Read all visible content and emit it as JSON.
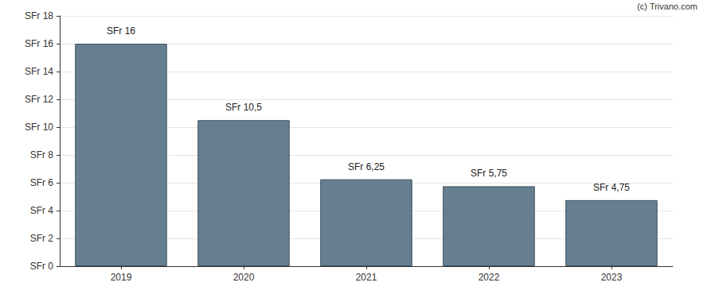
{
  "chart_data": {
    "type": "bar",
    "categories": [
      "2019",
      "2020",
      "2021",
      "2022",
      "2023"
    ],
    "values": [
      16,
      10.5,
      6.25,
      5.75,
      4.75
    ],
    "value_labels": [
      "SFr 16",
      "SFr 10,5",
      "SFr 6,25",
      "SFr 5,75",
      "SFr 4,75"
    ],
    "color": "#657f91",
    "ylim": [
      0,
      18
    ],
    "yticks": [
      {
        "value": 0,
        "label": "SFr 0"
      },
      {
        "value": 2,
        "label": "SFr 2"
      },
      {
        "value": 4,
        "label": "SFr 4"
      },
      {
        "value": 6,
        "label": "SFr 6"
      },
      {
        "value": 8,
        "label": "SFr 8"
      },
      {
        "value": 10,
        "label": "SFr 10"
      },
      {
        "value": 12,
        "label": "SFr 12"
      },
      {
        "value": 14,
        "label": "SFr 14"
      },
      {
        "value": 16,
        "label": "SFr 16"
      },
      {
        "value": 18,
        "label": "SFr 18"
      }
    ],
    "grid": true,
    "data_labels": true,
    "annotations": [
      "(c) Trivano.com"
    ]
  }
}
